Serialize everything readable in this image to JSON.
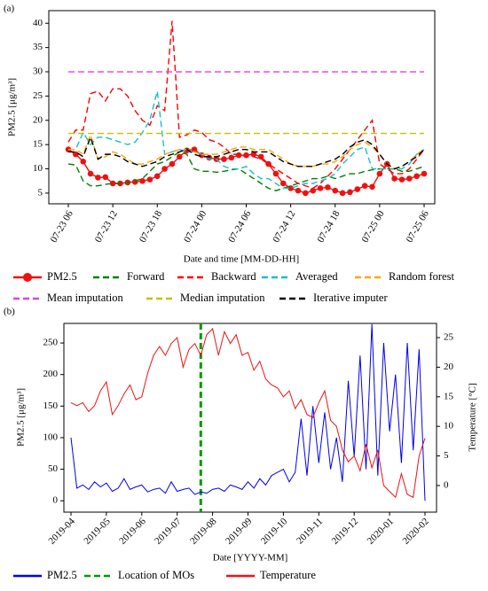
{
  "chart_data": [
    {
      "type": "line",
      "panel_label": "(a)",
      "xlabel": "Date and time [MM-DD-HH]",
      "ylabel": "PM2.5 [μg/m³]",
      "categories": [
        "07-23 06",
        null,
        null,
        null,
        null,
        null,
        "07-23 12",
        null,
        null,
        null,
        null,
        null,
        "07-23 18",
        null,
        null,
        null,
        null,
        null,
        "07-24 00",
        null,
        null,
        null,
        null,
        null,
        "07-24 06",
        null,
        null,
        null,
        null,
        null,
        "07-24 12",
        null,
        null,
        null,
        null,
        null,
        "07-24 18",
        null,
        null,
        null,
        null,
        null,
        "07-25 00",
        null,
        null,
        null,
        null,
        null,
        "07-25 06"
      ],
      "ylim": [
        2.8,
        42.6
      ],
      "yticks": [
        5,
        10,
        15,
        20,
        25,
        30,
        35,
        40
      ],
      "grid": false,
      "series": [
        {
          "name": "PM2.5",
          "color": "#ee1111",
          "linestyle": "solid",
          "marker": "o",
          "values": [
            14,
            13,
            11.5,
            9,
            8.2,
            8.3,
            7,
            7,
            7.2,
            7.3,
            7.5,
            7.8,
            8.5,
            10,
            11,
            12.5,
            13.8,
            14,
            12.8,
            12.3,
            12,
            12,
            12.3,
            12.8,
            12.8,
            13,
            12.5,
            11,
            9,
            7,
            6,
            5.5,
            5,
            5.5,
            6,
            6.2,
            5.5,
            5,
            5.2,
            5.8,
            6.5,
            6.3,
            9,
            11,
            8,
            7.8,
            8,
            8.5,
            9
          ]
        },
        {
          "name": "Forward",
          "color": "#008000",
          "linestyle": "dashed",
          "values": [
            11,
            10.8,
            7.5,
            6.5,
            6.5,
            6.8,
            7,
            7,
            7.2,
            7.5,
            8,
            9.5,
            11,
            11.5,
            12.5,
            13.5,
            13,
            10,
            9.5,
            9.5,
            9.3,
            9.5,
            9.8,
            10,
            9,
            8,
            7,
            6,
            5.5,
            6,
            6.5,
            7,
            7.5,
            8,
            8,
            8.5,
            8,
            8.5,
            9,
            9,
            9.5,
            9.8,
            10,
            10,
            10,
            9.5,
            9.5,
            10,
            10.5
          ]
        },
        {
          "name": "Backward",
          "color": "#ff0000",
          "linestyle": "dashed",
          "values": [
            15.5,
            18,
            18,
            25.5,
            26,
            24,
            26.5,
            26.5,
            25,
            22,
            20,
            19,
            23,
            22,
            40.5,
            16.5,
            17,
            18,
            17.5,
            16,
            15.5,
            14.5,
            13,
            13,
            12.5,
            12.5,
            12,
            11,
            10,
            9,
            8,
            7,
            6.5,
            6,
            7,
            8.5,
            10,
            12,
            14,
            16,
            18,
            20,
            11,
            10,
            9,
            9,
            10,
            12,
            14
          ]
        },
        {
          "name": "Averaged",
          "color": "#17becf",
          "linestyle": "dashed",
          "values": [
            14,
            14,
            17.5,
            15,
            16.5,
            16.5,
            16,
            15.5,
            15,
            15.5,
            17.5,
            20,
            26,
            13,
            13.5,
            14,
            13.5,
            13.5,
            13,
            12,
            12,
            10.5,
            10,
            10,
            10.5,
            9,
            8,
            8,
            7,
            6,
            6,
            6.5,
            7,
            7,
            7.5,
            8,
            9,
            11,
            12.5,
            14,
            14.5,
            10,
            10,
            10,
            10,
            10,
            11,
            13,
            14
          ]
        },
        {
          "name": "Random forest",
          "color": "#ffa500",
          "linestyle": "dashed",
          "values": [
            14,
            14,
            13,
            17,
            12,
            12.5,
            13.5,
            13,
            12,
            11,
            11,
            11.5,
            12,
            13,
            13.5,
            14,
            14,
            13.5,
            13,
            13,
            13,
            13.5,
            14,
            14.5,
            14.5,
            14,
            14,
            14,
            13,
            12,
            11,
            10.5,
            10.5,
            10.5,
            11,
            11,
            11.5,
            12.5,
            14,
            15,
            15.5,
            14.5,
            13,
            11,
            10,
            10.5,
            11.5,
            13,
            14
          ]
        },
        {
          "name": "Mean imputation",
          "color": "#e040e0",
          "linestyle": "dashed",
          "values": [
            30,
            30,
            30,
            30,
            30,
            30,
            30,
            30,
            30,
            30,
            30,
            30,
            30,
            30,
            30,
            30,
            30,
            30,
            30,
            30,
            30,
            30,
            30,
            30,
            30,
            30,
            30,
            30,
            30,
            30,
            30,
            30,
            30,
            30,
            30,
            30,
            30,
            30,
            30,
            30,
            30,
            30,
            30,
            30,
            30,
            30,
            30,
            30,
            30
          ]
        },
        {
          "name": "Median imputation",
          "color": "#c8c000",
          "linestyle": "dashed",
          "values": [
            17.3,
            17.3,
            17.3,
            17.3,
            17.3,
            17.3,
            17.3,
            17.3,
            17.3,
            17.3,
            17.3,
            17.3,
            17.3,
            17.3,
            17.3,
            17.3,
            17.3,
            17.3,
            17.3,
            17.3,
            17.3,
            17.3,
            17.3,
            17.3,
            17.3,
            17.3,
            17.3,
            17.3,
            17.3,
            17.3,
            17.3,
            17.3,
            17.3,
            17.3,
            17.3,
            17.3,
            17.3,
            17.3,
            17.3,
            17.3,
            17.3,
            17.3,
            17.3,
            17.3,
            17.3,
            17.3,
            17.3,
            17.3,
            17.3
          ]
        },
        {
          "name": "Iterative imputer",
          "color": "#000000",
          "linestyle": "dashed",
          "values": [
            13.5,
            13.5,
            12.5,
            16.5,
            12,
            13,
            13,
            12.5,
            11.5,
            11,
            10.5,
            11,
            11.5,
            12.5,
            13,
            13.5,
            14,
            13,
            12.5,
            12.5,
            12.5,
            13,
            13.5,
            14,
            14,
            13.5,
            13.5,
            13.5,
            12.5,
            11.5,
            11,
            10.5,
            10.5,
            10.5,
            11,
            11.5,
            12,
            13,
            14.5,
            15.5,
            16,
            15,
            13,
            11,
            10,
            10.5,
            11.5,
            12.5,
            14
          ]
        }
      ]
    },
    {
      "type": "line",
      "panel_label": "(b)",
      "xlabel": "Date [YYYY-MM]",
      "ylabel": "PM2.5 [μg/m³]",
      "y2label": "Temperature [°C]",
      "categories": [
        "2019-04",
        null,
        null,
        null,
        null,
        null,
        "2019-05",
        null,
        null,
        null,
        null,
        null,
        "2019-06",
        null,
        null,
        null,
        null,
        null,
        "2019-07",
        null,
        null,
        null,
        null,
        null,
        "2019-08",
        null,
        null,
        null,
        null,
        null,
        "2019-09",
        null,
        null,
        null,
        null,
        null,
        "2019-10",
        null,
        null,
        null,
        null,
        null,
        "2019-11",
        null,
        null,
        null,
        null,
        null,
        "2019-12",
        null,
        null,
        null,
        null,
        null,
        "2020-01",
        null,
        null,
        null,
        null,
        null,
        "2020-02"
      ],
      "ylim": [
        -18,
        281
      ],
      "yticks": [
        0,
        50,
        100,
        150,
        200,
        250
      ],
      "y2lim": [
        -4.5,
        27.4
      ],
      "y2ticks": [
        0,
        5,
        10,
        15,
        20,
        25
      ],
      "grid": false,
      "series": [
        {
          "name": "PM2.5",
          "color": "#0000ee",
          "linestyle": "solid",
          "values": [
            100,
            20,
            25,
            18,
            30,
            22,
            28,
            15,
            20,
            35,
            18,
            22,
            25,
            14,
            18,
            20,
            12,
            30,
            15,
            18,
            20,
            10,
            14,
            12,
            18,
            20,
            15,
            25,
            22,
            18,
            30,
            20,
            35,
            25,
            40,
            45,
            50,
            30,
            45,
            130,
            40,
            150,
            60,
            140,
            50,
            100,
            30,
            190,
            70,
            230,
            50,
            280,
            40,
            250,
            110,
            200,
            60,
            250,
            80,
            240,
            0
          ]
        },
        {
          "name": "Temperature",
          "color": "#ee1111",
          "linestyle": "solid",
          "axis": "y2",
          "values": [
            14,
            13.5,
            14,
            12.5,
            13.5,
            16,
            17.5,
            12,
            13.5,
            15.5,
            17,
            14.5,
            15,
            19,
            22,
            23.5,
            22,
            24,
            25,
            20,
            23,
            24,
            22,
            25.5,
            26.5,
            22,
            26,
            24,
            25.5,
            22,
            22.5,
            19.5,
            21,
            18,
            17,
            16.5,
            15,
            16,
            13,
            14.5,
            12,
            11.5,
            14,
            16,
            11,
            10,
            6,
            4,
            5,
            2.5,
            7,
            3,
            6,
            0,
            -1,
            -2,
            2,
            -1.5,
            -2,
            5,
            8
          ]
        }
      ],
      "vline": {
        "name": "Location of MOs",
        "color": "#009900",
        "linestyle": "dashed",
        "category_index": 22
      }
    }
  ]
}
